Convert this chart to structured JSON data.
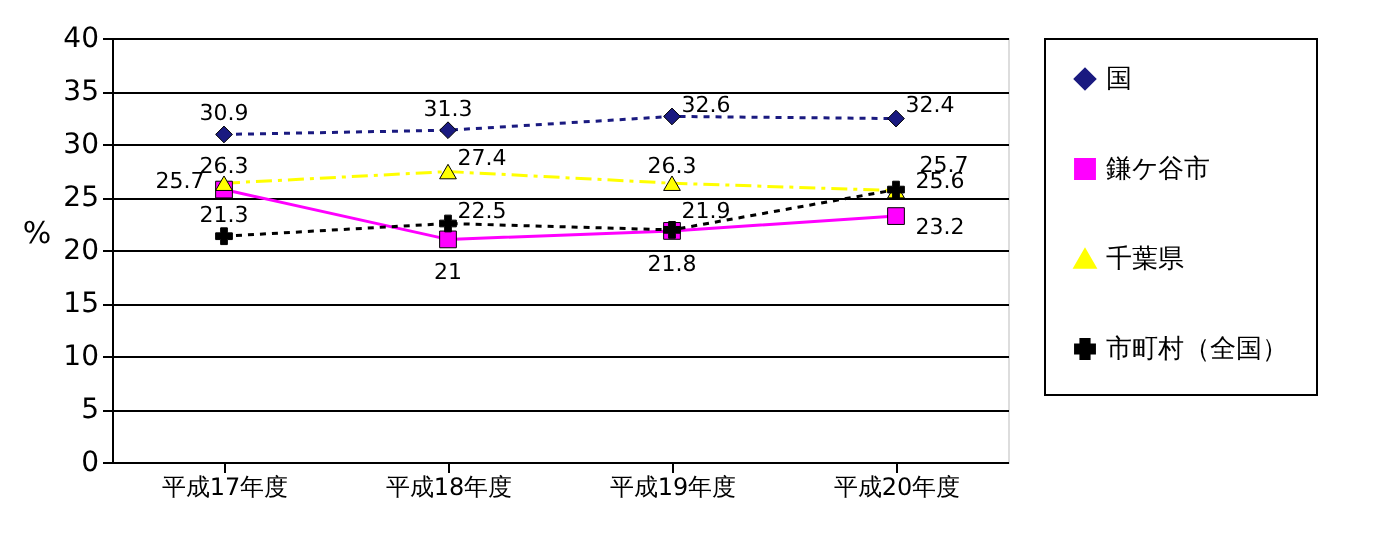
{
  "chart_data": {
    "type": "line",
    "ylabel": "%",
    "categories": [
      "平成17年度",
      "平成18年度",
      "平成19年度",
      "平成20年度"
    ],
    "series": [
      {
        "name": "国",
        "color": "#1a1a80",
        "values": [
          30.9,
          31.3,
          32.6,
          32.4
        ],
        "marker": "diamond",
        "line_style": "dotted"
      },
      {
        "name": "鎌ケ谷市",
        "color": "#ff00ff",
        "values": [
          25.7,
          21,
          21.8,
          23.2
        ],
        "marker": "square",
        "line_style": "solid"
      },
      {
        "name": "千葉県",
        "color": "#ffff00",
        "values": [
          26.3,
          27.4,
          26.3,
          25.6
        ],
        "marker": "triangle",
        "line_style": "dashed"
      },
      {
        "name": "市町村（全国）",
        "color": "#000000",
        "values": [
          21.3,
          22.5,
          21.9,
          25.7
        ],
        "marker": "cross",
        "line_style": "dotted"
      }
    ],
    "ylim": [
      0,
      40
    ],
    "yticks": [
      0,
      5,
      10,
      15,
      20,
      25,
      30,
      35,
      40
    ],
    "grid": "y",
    "legend": "right",
    "data_labels": true
  }
}
